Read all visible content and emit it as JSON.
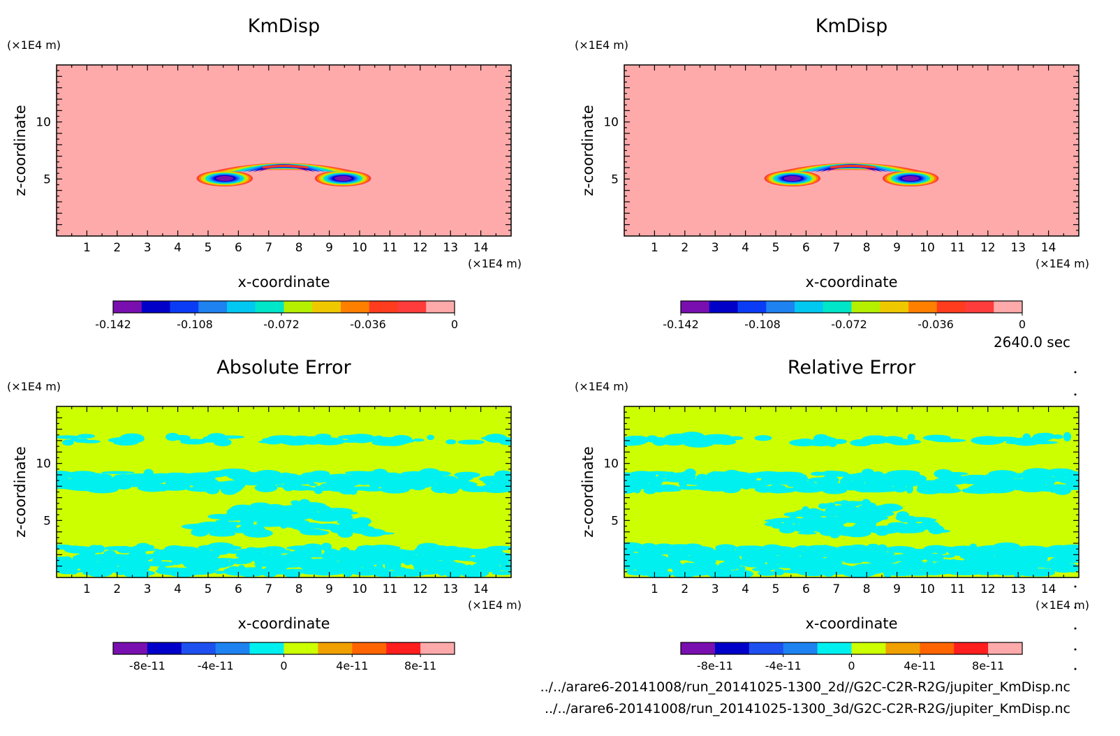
{
  "time_label": "2640.0 sec",
  "files": [
    "../../arare6-20141008/run_20141025-1300_2d//G2C-C2R-R2G/jupiter_KmDisp.nc",
    "../../arare6-20141008/run_20141025-1300_3d/G2C-C2R-R2G/jupiter_KmDisp.nc"
  ],
  "colors": {
    "kmdisp_levels": [
      "#7a0fb0",
      "#0000c8",
      "#0a3cf5",
      "#1e82f0",
      "#00c8f0",
      "#00e6c8",
      "#b4f000",
      "#f0c800",
      "#ff8000",
      "#ff3c1e",
      "#ff3c3c",
      "#ffaaaa"
    ],
    "error_levels": [
      "#7a0fb0",
      "#0000c8",
      "#1e50f0",
      "#1e82f0",
      "#00f0f0",
      "#ccff00",
      "#f0a000",
      "#ff6400",
      "#ff1e1e",
      "#ffaaaa"
    ],
    "kmdisp_background": "#ffaaaa",
    "error_background": "#ccff00",
    "error_patch": "#00f0f0"
  },
  "chart_data": [
    {
      "type": "heatmap",
      "title": "KmDisp",
      "xlabel": "x-coordinate",
      "ylabel": "z-coordinate",
      "x_unit": "(×1E4 m)",
      "y_unit": "(×1E4 m)",
      "xlim": [
        0,
        15
      ],
      "ylim": [
        0,
        15
      ],
      "x_ticks": [
        "1",
        "2",
        "3",
        "4",
        "5",
        "6",
        "7",
        "8",
        "9",
        "10",
        "11",
        "12",
        "13",
        "14"
      ],
      "y_ticks": [
        "5",
        "10"
      ],
      "colorbar_labels": [
        "-0.142",
        "-0.108",
        "-0.072",
        "-0.036",
        "0"
      ],
      "colorbar_range": [
        -0.142,
        0
      ],
      "field": "thermal (KmDisp) — mostly 0, negative mushroom-shaped feature centered near x≈7.5, z≈5.5"
    },
    {
      "type": "heatmap",
      "title": "KmDisp",
      "xlabel": "x-coordinate",
      "ylabel": "z-coordinate",
      "x_unit": "(×1E4 m)",
      "y_unit": "(×1E4 m)",
      "xlim": [
        0,
        15
      ],
      "ylim": [
        0,
        15
      ],
      "x_ticks": [
        "1",
        "2",
        "3",
        "4",
        "5",
        "6",
        "7",
        "8",
        "9",
        "10",
        "11",
        "12",
        "13",
        "14"
      ],
      "y_ticks": [
        "5",
        "10"
      ],
      "colorbar_labels": [
        "-0.142",
        "-0.108",
        "-0.072",
        "-0.036",
        "0"
      ],
      "colorbar_range": [
        -0.142,
        0
      ]
    },
    {
      "type": "heatmap",
      "title": "Absolute Error",
      "xlabel": "x-coordinate",
      "ylabel": "z-coordinate",
      "x_unit": "(×1E4 m)",
      "y_unit": "(×1E4 m)",
      "xlim": [
        0,
        15
      ],
      "ylim": [
        0,
        15
      ],
      "x_ticks": [
        "1",
        "2",
        "3",
        "4",
        "5",
        "6",
        "7",
        "8",
        "9",
        "10",
        "11",
        "12",
        "13",
        "14"
      ],
      "y_ticks": [
        "5",
        "10"
      ],
      "colorbar_labels": [
        "-8e-11",
        "-4e-11",
        "0",
        "4e-11",
        "8e-11"
      ],
      "colorbar_range": [
        -1e-10,
        1e-10
      ]
    },
    {
      "type": "heatmap",
      "title": "Relative Error",
      "xlabel": "x-coordinate",
      "ylabel": "z-coordinate",
      "x_unit": "(×1E4 m)",
      "y_unit": "(×1E4 m)",
      "xlim": [
        0,
        15
      ],
      "ylim": [
        0,
        15
      ],
      "x_ticks": [
        "1",
        "2",
        "3",
        "4",
        "5",
        "6",
        "7",
        "8",
        "9",
        "10",
        "11",
        "12",
        "13",
        "14"
      ],
      "y_ticks": [
        "5",
        "10"
      ],
      "colorbar_labels": [
        "-8e-11",
        "-4e-11",
        "0",
        "4e-11",
        "8e-11"
      ],
      "colorbar_range": [
        -1e-10,
        1e-10
      ]
    }
  ]
}
